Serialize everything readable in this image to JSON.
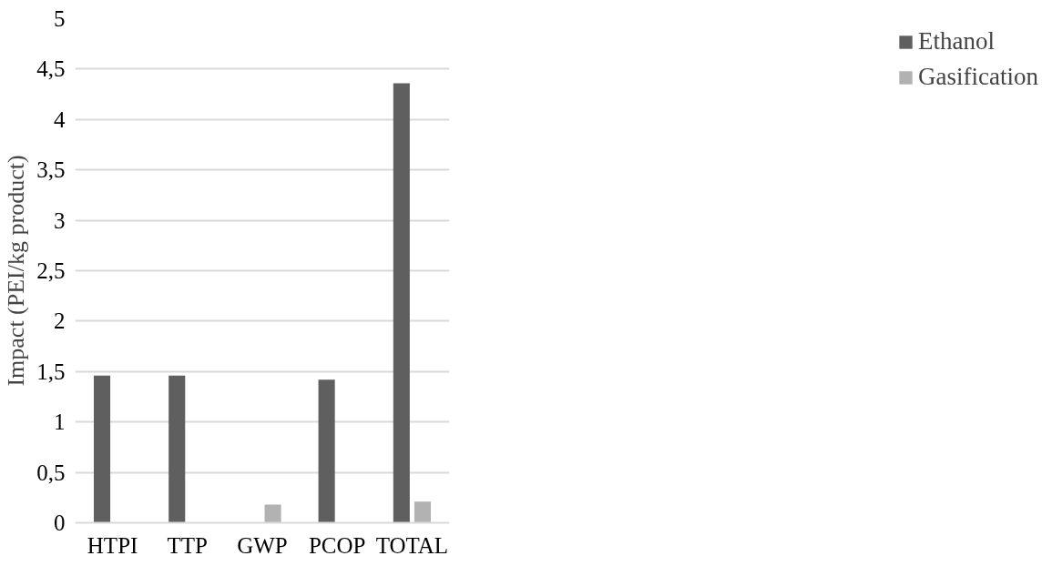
{
  "chart_data": {
    "type": "bar",
    "ylabel": "Impact (PEI/kg product)",
    "categories": [
      "HTPI",
      "TTP",
      "GWP",
      "PCOP",
      "TOTAL"
    ],
    "series": [
      {
        "name": "Ethanol",
        "color": "#5f5f5f",
        "values": [
          1.46,
          1.46,
          0,
          1.42,
          4.36
        ]
      },
      {
        "name": "Gasification",
        "color": "#b2b2b2",
        "values": [
          0,
          0,
          0.18,
          0,
          0.21
        ]
      }
    ],
    "ylim": [
      0,
      5
    ],
    "yticks": [
      0,
      {
        "value": 0.5,
        "label": "0,5"
      },
      1,
      {
        "value": 1.5,
        "label": "1,5"
      },
      2,
      {
        "value": 2.5,
        "label": "2,5"
      },
      3,
      {
        "value": 3.5,
        "label": "3,5"
      },
      4,
      {
        "value": 4.5,
        "label": "4,5"
      },
      5
    ],
    "grid": "y",
    "legend": "right"
  }
}
